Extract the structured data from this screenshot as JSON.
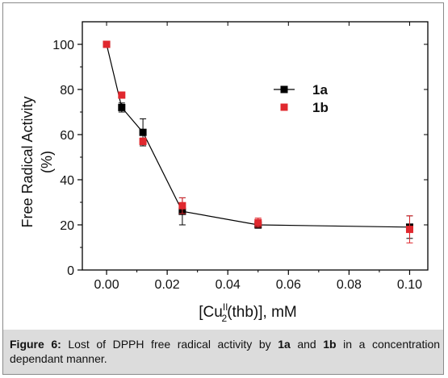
{
  "chart_data": {
    "type": "scatter",
    "ylabel_line1": "Free Radical Activity",
    "ylabel_line2": "(%)",
    "xlabel_prefix": "[Cu",
    "xlabel_sup": "II",
    "xlabel_sub": "2",
    "xlabel_suffix": "(thb)], mM",
    "xlim": [
      -0.008,
      0.106
    ],
    "ylim": [
      0,
      110
    ],
    "xticks": [
      0.0,
      0.02,
      0.04,
      0.06,
      0.08,
      0.1
    ],
    "xtick_labels": [
      "0.00",
      "0.02",
      "0.04",
      "0.06",
      "0.08",
      "0.10"
    ],
    "yticks": [
      0,
      20,
      40,
      60,
      80,
      100
    ],
    "ytick_labels": [
      "0",
      "20",
      "40",
      "60",
      "80",
      "100"
    ],
    "legend_position": "top-right",
    "series": [
      {
        "name": "1a",
        "color": "#000000",
        "marker": "square",
        "connected": true,
        "x": [
          0.0,
          0.005,
          0.012,
          0.025,
          0.05,
          0.1
        ],
        "y": [
          100,
          72,
          61,
          26,
          20,
          19
        ],
        "err": [
          0,
          2,
          6,
          6,
          1.5,
          5
        ]
      },
      {
        "name": "1b",
        "color": "#e0282e",
        "marker": "square",
        "connected": false,
        "x": [
          0.0,
          0.005,
          0.012,
          0.025,
          0.05,
          0.1
        ],
        "y": [
          100,
          77.5,
          57,
          28.5,
          21,
          18
        ],
        "err": [
          0,
          0,
          1.5,
          3.5,
          2,
          6
        ]
      }
    ]
  },
  "caption": {
    "label": "Figure 6:",
    "text_1": " Lost of DPPH free radical activity by ",
    "bold_1": "1a",
    "text_2": " and ",
    "bold_2": "1b",
    "text_3": " in a concentration dependant manner."
  }
}
